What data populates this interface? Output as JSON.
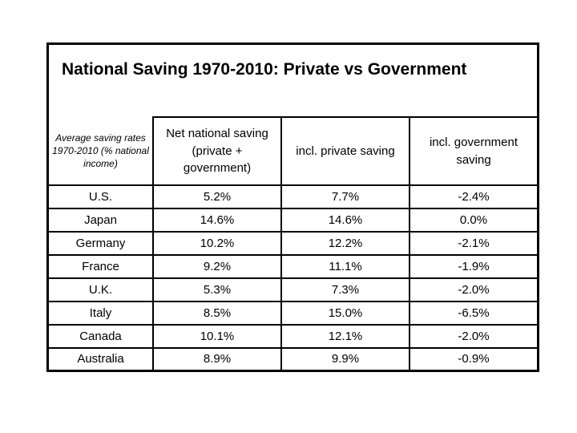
{
  "colors": {
    "background": "#ffffff",
    "ink": "#000000"
  },
  "slide": {
    "title": "National Saving 1970-2010: Private vs Government"
  },
  "table": {
    "corner_header": "Average saving rates 1970-2010 (% national income)",
    "column_headers": [
      "Net national saving (private + government)",
      "incl. private saving",
      "incl. government saving"
    ],
    "rows": [
      {
        "label": "U.S.",
        "values": [
          "5.2%",
          "7.7%",
          "-2.4%"
        ]
      },
      {
        "label": "Japan",
        "values": [
          "14.6%",
          "14.6%",
          "0.0%"
        ]
      },
      {
        "label": "Germany",
        "values": [
          "10.2%",
          "12.2%",
          "-2.1%"
        ]
      },
      {
        "label": "France",
        "values": [
          "9.2%",
          "11.1%",
          "-1.9%"
        ]
      },
      {
        "label": "U.K.",
        "values": [
          "5.3%",
          "7.3%",
          "-2.0%"
        ]
      },
      {
        "label": "Italy",
        "values": [
          "8.5%",
          "15.0%",
          "-6.5%"
        ]
      },
      {
        "label": "Canada",
        "values": [
          "10.1%",
          "12.1%",
          "-2.0%"
        ]
      },
      {
        "label": "Australia",
        "values": [
          "8.9%",
          "9.9%",
          "-0.9%"
        ]
      }
    ]
  }
}
